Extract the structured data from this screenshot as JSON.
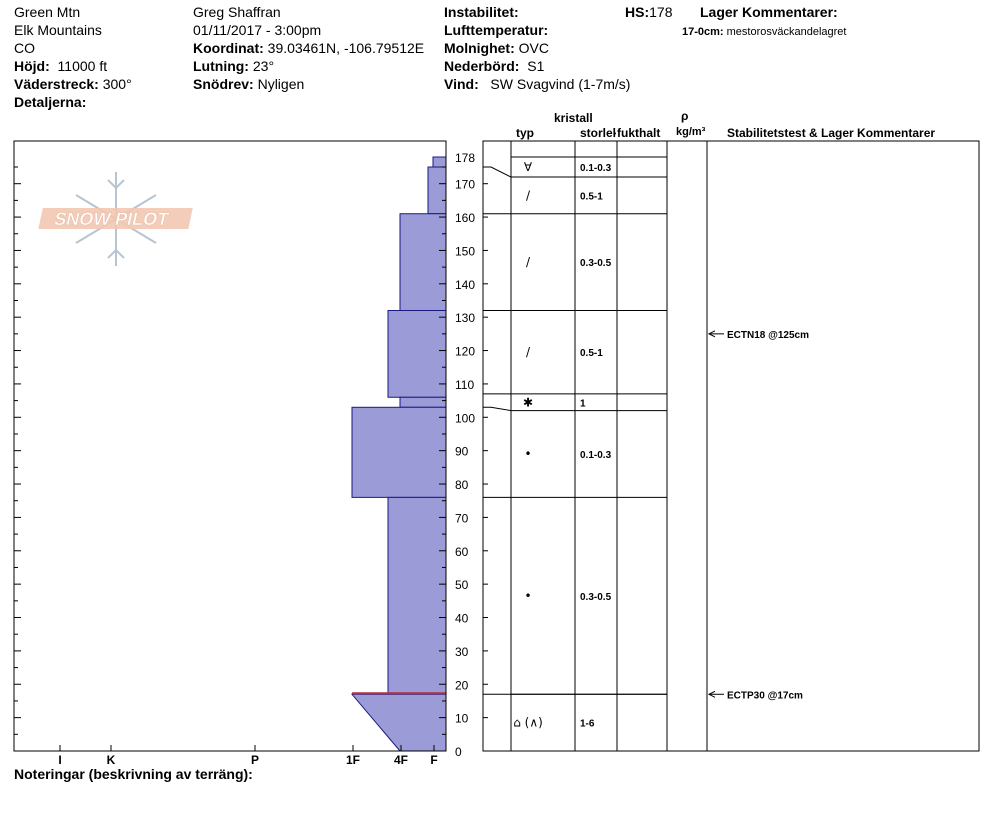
{
  "header": {
    "left": {
      "location": "Green Mtn",
      "range": "Elk Mountains",
      "state": "CO",
      "elevation_label": "Höjd:",
      "elevation_value": "11000 ft",
      "aspect_label": "Väderstreck:",
      "aspect_value": "300°",
      "details_label": "Detaljerna:"
    },
    "middle": {
      "observer": "Greg Shaffran",
      "datetime": "01/11/2017 - 3:00pm",
      "coord_label": "Koordinat:",
      "coord_value": "39.03461N, -106.79512E",
      "slope_label": "Lutning:",
      "slope_value": "23°",
      "drift_label": "Snödrev:",
      "drift_value": "Nyligen"
    },
    "right": {
      "instability_label": "Instabilitet:",
      "air_temp_label": "Lufttemperatur:",
      "sky_label": "Molnighet:",
      "sky_value": "OVC",
      "precip_label": "Nederbörd:",
      "precip_value": "S1",
      "wind_label": "Vind:",
      "wind_value": "SW Svagvind (1-7m/s)"
    },
    "hs_label": "HS:",
    "hs_value": "178",
    "layer_comments_label": "Lager Kommentarer:",
    "layer_comment_range": "17-0cm:",
    "layer_comment_text": "mestorosväckandelagret"
  },
  "logo_text": "SNOW PILOT",
  "columns": {
    "crystal_label": "kristall",
    "type_label": "typ",
    "size_label": "storlek",
    "moisture_label": "fukthalt",
    "rho_label": "ρ",
    "density_unit": "kg/m³",
    "stability_label": "Stabilitetstest & Lager Kommentarer"
  },
  "footer": {
    "notes_label": "Noteringar (beskrivning av terräng):"
  },
  "chart_data": {
    "type": "snow_profile_hardness",
    "y_range": [
      0,
      178
    ],
    "y_ticks": [
      0,
      10,
      20,
      30,
      40,
      50,
      60,
      70,
      80,
      90,
      100,
      110,
      120,
      130,
      140,
      150,
      160,
      170,
      178
    ],
    "hardness_scale": [
      "F",
      "4F",
      "1F",
      "P",
      "K",
      "I"
    ],
    "hardness_axis_labels": [
      "I",
      "K",
      "P",
      "1F",
      "4F",
      "F"
    ],
    "hardness_layers": [
      {
        "top": 178,
        "bottom": 175,
        "hardness": "F"
      },
      {
        "top": 175,
        "bottom": 161,
        "hardness": "F+"
      },
      {
        "top": 161,
        "bottom": 132,
        "hardness": "4F"
      },
      {
        "top": 132,
        "bottom": 106,
        "hardness": "4F+"
      },
      {
        "top": 106,
        "bottom": 103,
        "hardness": "4F"
      },
      {
        "top": 103,
        "bottom": 76,
        "hardness": "1F"
      },
      {
        "top": 76,
        "bottom": 17,
        "hardness": "4F+"
      },
      {
        "top": 17,
        "bottom": 0,
        "hardness_top": "1F",
        "hardness_bottom": "4F"
      }
    ],
    "weak_layer_height": 17,
    "crystal_layers": [
      {
        "top": 178,
        "bottom": 172,
        "type_symbol": "∀",
        "size": "0.1-0.3"
      },
      {
        "top": 172,
        "bottom": 161,
        "type_symbol": "/",
        "size": "0.5-1"
      },
      {
        "top": 161,
        "bottom": 132,
        "type_symbol": "/",
        "size": "0.3-0.5"
      },
      {
        "top": 132,
        "bottom": 107,
        "type_symbol": "/",
        "size": "0.5-1"
      },
      {
        "top": 107,
        "bottom": 102,
        "type_symbol": "✱",
        "size": "1"
      },
      {
        "top": 102,
        "bottom": 76,
        "type_symbol": "•",
        "size": "0.1-0.3"
      },
      {
        "top": 76,
        "bottom": 17,
        "type_symbol": "•",
        "size": "0.3-0.5"
      },
      {
        "top": 17,
        "bottom": 0,
        "type_symbol": "⌂ (∧)",
        "size": "1-6"
      }
    ],
    "stability_tests": [
      {
        "height": 125,
        "label": "ECTN18 @125cm"
      },
      {
        "height": 17,
        "label": "ECTP30 @17cm"
      }
    ]
  }
}
